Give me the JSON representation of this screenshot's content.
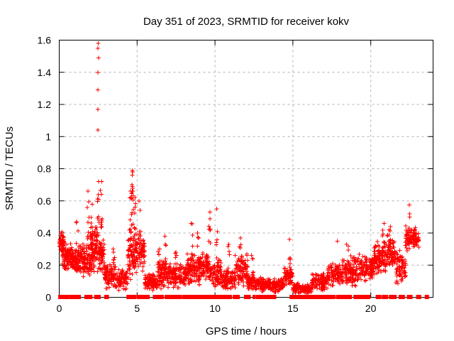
{
  "chart_data": {
    "type": "scatter",
    "title": "Day 351 of 2023, SRMTID for receiver kokv",
    "xlabel": "GPS time / hours",
    "ylabel": "SRMTID / TECUs",
    "xlim": [
      0,
      24
    ],
    "ylim": [
      0,
      1.6
    ],
    "xticks": [
      0,
      5,
      10,
      15,
      20
    ],
    "xtick_labels": [
      "0",
      "5",
      "10",
      "15",
      "20"
    ],
    "yticks": [
      0,
      0.2,
      0.4,
      0.6,
      0.8,
      1,
      1.2,
      1.4,
      1.6
    ],
    "ytick_labels": [
      "0",
      "0.2",
      "0.4",
      "0.6",
      "0.8",
      "1",
      "1.2",
      "1.4",
      "1.6"
    ],
    "grid": true,
    "legend": "none",
    "marker": "plus",
    "marker_color": "#ff0000",
    "grid_color": "#b0b0b0",
    "border_color": "#000000",
    "background_color": "#ffffff",
    "seed": 1351,
    "bands": [
      [
        0.0,
        0.3,
        0.27,
        0.42,
        55
      ],
      [
        0.2,
        1.0,
        0.15,
        0.35,
        120
      ],
      [
        1.0,
        2.0,
        0.12,
        0.34,
        150
      ],
      [
        2.0,
        2.45,
        0.32,
        0.47,
        30
      ],
      [
        2.0,
        2.9,
        0.15,
        0.38,
        130
      ],
      [
        2.9,
        3.6,
        0.05,
        0.22,
        90
      ],
      [
        3.6,
        4.4,
        0.04,
        0.18,
        80
      ],
      [
        4.4,
        5.0,
        0.1,
        0.45,
        90
      ],
      [
        5.0,
        5.5,
        0.13,
        0.42,
        60
      ],
      [
        5.5,
        6.3,
        0.04,
        0.15,
        110
      ],
      [
        6.3,
        7.2,
        0.05,
        0.25,
        110
      ],
      [
        7.2,
        8.2,
        0.05,
        0.22,
        120
      ],
      [
        8.2,
        9.0,
        0.06,
        0.28,
        110
      ],
      [
        9.0,
        9.6,
        0.1,
        0.3,
        80
      ],
      [
        9.6,
        10.4,
        0.05,
        0.25,
        80
      ],
      [
        10.4,
        11.3,
        0.04,
        0.18,
        100
      ],
      [
        11.3,
        12.1,
        0.05,
        0.28,
        90
      ],
      [
        12.1,
        13.0,
        0.04,
        0.14,
        110
      ],
      [
        13.0,
        14.4,
        0.03,
        0.12,
        140
      ],
      [
        14.4,
        15.0,
        0.04,
        0.2,
        60
      ],
      [
        15.0,
        16.2,
        0.02,
        0.09,
        110
      ],
      [
        16.2,
        17.2,
        0.04,
        0.16,
        110
      ],
      [
        17.2,
        18.2,
        0.06,
        0.22,
        110
      ],
      [
        18.2,
        19.2,
        0.06,
        0.26,
        110
      ],
      [
        19.2,
        20.2,
        0.09,
        0.29,
        110
      ],
      [
        20.2,
        21.0,
        0.13,
        0.36,
        110
      ],
      [
        21.0,
        21.6,
        0.16,
        0.4,
        80
      ],
      [
        21.6,
        22.25,
        0.08,
        0.3,
        70
      ],
      [
        22.2,
        22.9,
        0.28,
        0.45,
        90
      ],
      [
        22.9,
        23.1,
        0.3,
        0.4,
        15
      ]
    ],
    "spikes": [
      [
        1.15,
        0.2,
        0.47,
        6
      ],
      [
        1.85,
        0.3,
        0.66,
        10
      ],
      [
        2.1,
        0.32,
        0.58,
        8
      ],
      [
        2.5,
        0.35,
        0.72,
        12
      ],
      [
        2.7,
        0.3,
        0.72,
        10
      ],
      [
        3.5,
        0.15,
        0.3,
        6
      ],
      [
        4.55,
        0.3,
        0.66,
        9
      ],
      [
        4.7,
        0.42,
        0.7,
        14
      ],
      [
        4.85,
        0.25,
        0.62,
        8
      ],
      [
        5.15,
        0.2,
        0.6,
        9
      ],
      [
        6.4,
        0.12,
        0.3,
        7
      ],
      [
        6.8,
        0.12,
        0.38,
        9
      ],
      [
        7.5,
        0.1,
        0.28,
        6
      ],
      [
        8.5,
        0.15,
        0.46,
        8
      ],
      [
        8.9,
        0.12,
        0.4,
        7
      ],
      [
        9.65,
        0.2,
        0.53,
        9
      ],
      [
        10.1,
        0.15,
        0.55,
        7
      ],
      [
        10.9,
        0.08,
        0.33,
        6
      ],
      [
        11.6,
        0.1,
        0.37,
        7
      ],
      [
        12.4,
        0.08,
        0.26,
        6
      ],
      [
        14.8,
        0.06,
        0.36,
        9
      ],
      [
        17.9,
        0.1,
        0.35,
        6
      ],
      [
        18.5,
        0.1,
        0.33,
        6
      ],
      [
        20.8,
        0.2,
        0.46,
        8
      ],
      [
        21.2,
        0.2,
        0.44,
        7
      ]
    ],
    "outliers": [
      [
        2.49,
        1.04
      ],
      [
        2.49,
        1.17
      ],
      [
        2.49,
        1.29
      ],
      [
        2.49,
        1.4
      ],
      [
        2.52,
        1.49
      ],
      [
        2.49,
        1.55
      ],
      [
        2.51,
        1.58
      ],
      [
        4.68,
        0.76
      ],
      [
        4.72,
        0.78
      ],
      [
        4.7,
        0.79
      ],
      [
        22.5,
        0.5
      ],
      [
        22.5,
        0.52
      ],
      [
        22.48,
        0.575
      ],
      [
        15.4,
        0.01
      ]
    ],
    "baseline_hours": [
      0.05,
      0.1,
      0.15,
      0.2,
      0.25,
      0.45,
      0.75,
      0.95,
      1.1,
      1.3,
      1.75,
      1.95,
      2.4,
      2.55,
      3.0,
      3.1,
      4.45,
      4.5,
      4.55,
      4.8,
      5.1,
      5.25,
      5.5,
      5.65,
      6.1,
      6.2,
      6.3,
      6.45,
      6.6,
      6.9,
      7.0,
      7.1,
      7.3,
      7.5,
      7.6,
      7.8,
      8.0,
      8.1,
      8.2,
      8.35,
      8.5,
      8.7,
      8.8,
      9.0,
      9.1,
      9.2,
      9.3,
      9.5,
      9.6,
      9.7,
      9.8,
      10.0,
      10.3,
      10.4,
      10.7,
      10.9,
      11.0,
      11.3,
      11.5,
      12.0,
      12.1,
      12.2,
      12.5,
      12.7,
      12.8,
      12.9,
      13.0,
      13.2,
      13.35,
      13.5,
      13.65,
      13.8,
      14.9,
      15.0,
      15.1,
      15.3,
      15.5,
      15.7,
      16.0,
      16.1,
      16.2,
      16.3,
      16.5,
      16.7,
      16.9,
      17.1,
      17.25,
      17.4,
      17.55,
      17.9,
      18.1,
      18.3,
      18.5,
      18.7,
      19.0,
      19.15,
      19.3,
      19.5,
      19.8,
      20.5,
      20.8,
      20.9,
      21.0,
      21.3,
      21.5,
      21.9,
      22.0,
      22.1,
      22.5,
      23.0,
      23.1,
      23.6
    ]
  }
}
